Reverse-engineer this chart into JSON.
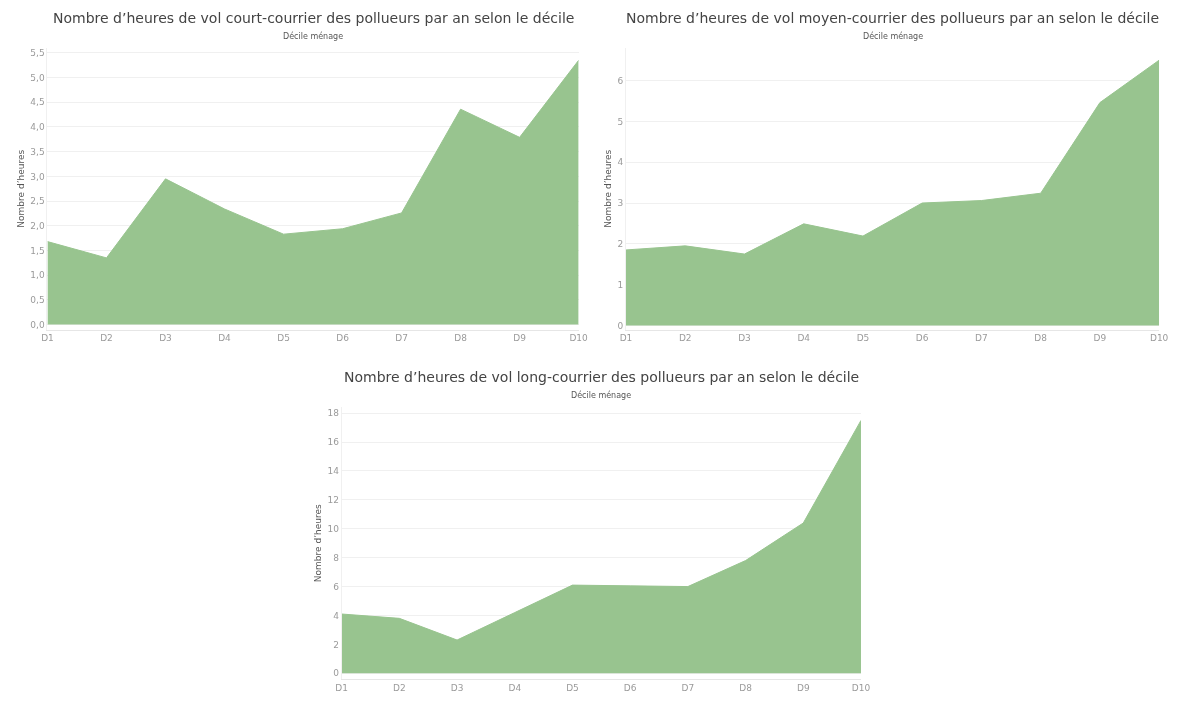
{
  "chart_data": [
    {
      "type": "area",
      "title": "Nombre d’heures de vol court-courrier des pollueurs par an selon le décile",
      "xlabel": "Décile ménage",
      "ylabel": "Nombre d’heures",
      "categories": [
        "D1",
        "D2",
        "D3",
        "D4",
        "D5",
        "D6",
        "D7",
        "D8",
        "D9",
        "D10"
      ],
      "color": "#98c48f",
      "values": [
        1.68,
        1.35,
        2.95,
        2.34,
        1.83,
        1.94,
        2.26,
        4.36,
        3.79,
        5.35
      ],
      "ylim": [
        -0.1,
        5.6
      ],
      "yticks": [
        {
          "value": 0,
          "label": "0,0"
        },
        {
          "value": 0.5,
          "label": "0,5"
        },
        {
          "value": 1,
          "label": "1,0"
        },
        {
          "value": 1.5,
          "label": "1,5"
        },
        {
          "value": 2,
          "label": "2,0"
        },
        {
          "value": 2.5,
          "label": "2,5"
        },
        {
          "value": 3,
          "label": "3,0"
        },
        {
          "value": 3.5,
          "label": "3,5"
        },
        {
          "value": 4,
          "label": "4,0"
        },
        {
          "value": 4.5,
          "label": "4,5"
        },
        {
          "value": 5,
          "label": "5,0"
        },
        {
          "value": 5.5,
          "label": "5,5"
        }
      ],
      "grid": "y"
    },
    {
      "type": "area",
      "title": "Nombre d’heures de vol moyen-courrier des pollueurs par an selon le décile",
      "xlabel": "Décile ménage",
      "ylabel": "Nombre d’heures",
      "categories": [
        "D1",
        "D2",
        "D3",
        "D4",
        "D5",
        "D6",
        "D7",
        "D8",
        "D9",
        "D10"
      ],
      "color": "#98c48f",
      "values": [
        1.85,
        1.95,
        1.75,
        2.49,
        2.19,
        3.0,
        3.06,
        3.24,
        5.46,
        6.5
      ],
      "ylim": [
        -0.1,
        6.8
      ],
      "yticks": [
        0,
        1,
        2,
        3,
        4,
        5,
        6
      ],
      "grid": "y"
    },
    {
      "type": "area",
      "title": "Nombre d’heures de vol long-courrier des pollueurs par an selon le décile",
      "xlabel": "Décile ménage",
      "ylabel": "Nombre d’heures",
      "categories": [
        "D1",
        "D2",
        "D3",
        "D4",
        "D5",
        "D6",
        "D7",
        "D8",
        "D9",
        "D10"
      ],
      "color": "#98c48f",
      "values": [
        4.1,
        3.8,
        2.3,
        4.2,
        6.1,
        6.05,
        6.0,
        7.8,
        10.4,
        17.5
      ],
      "ylim": [
        -0.4,
        18.4
      ],
      "yticks": [
        0,
        2,
        4,
        6,
        8,
        10,
        12,
        14,
        16,
        18
      ],
      "grid": "y"
    }
  ]
}
